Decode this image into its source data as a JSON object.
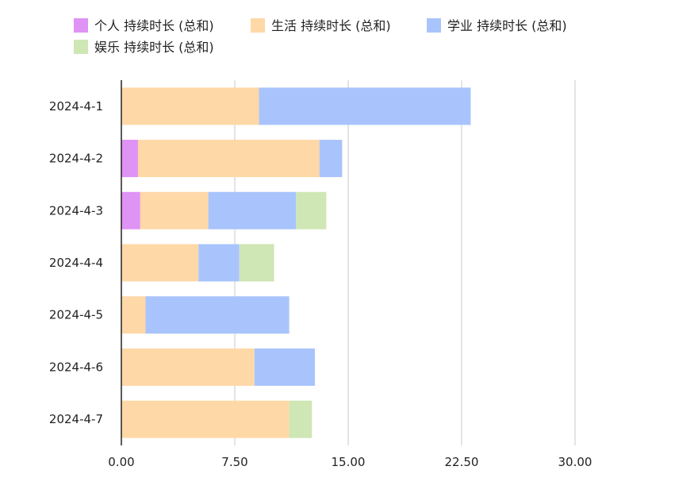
{
  "chart_data": {
    "type": "bar",
    "orientation": "horizontal",
    "stacked": true,
    "categories": [
      "2024-4-1",
      "2024-4-2",
      "2024-4-3",
      "2024-4-4",
      "2024-4-5",
      "2024-4-6",
      "2024-4-7"
    ],
    "series": [
      {
        "name": "个人 持续时长 (总和)",
        "color": "#df93f5",
        "values": [
          0,
          1.1,
          1.25,
          0,
          0,
          0,
          0
        ]
      },
      {
        "name": "生活 持续时长 (总和)",
        "color": "#fed8a7",
        "values": [
          9.1,
          12.0,
          4.5,
          5.1,
          1.6,
          8.8,
          11.1
        ]
      },
      {
        "name": "学业 持续时长 (总和)",
        "color": "#a9c4fc",
        "values": [
          14.0,
          1.5,
          5.8,
          2.7,
          9.5,
          4.0,
          0
        ]
      },
      {
        "name": "娱乐 持续时长 (总和)",
        "color": "#cfe6b5",
        "values": [
          0,
          0,
          2.0,
          2.3,
          0,
          0,
          1.5
        ]
      }
    ],
    "xlim": [
      0,
      30
    ],
    "xticks": [
      "0.00",
      "7.50",
      "15.00",
      "22.50",
      "30.00"
    ],
    "grid": true,
    "legend_position": "top-left"
  }
}
